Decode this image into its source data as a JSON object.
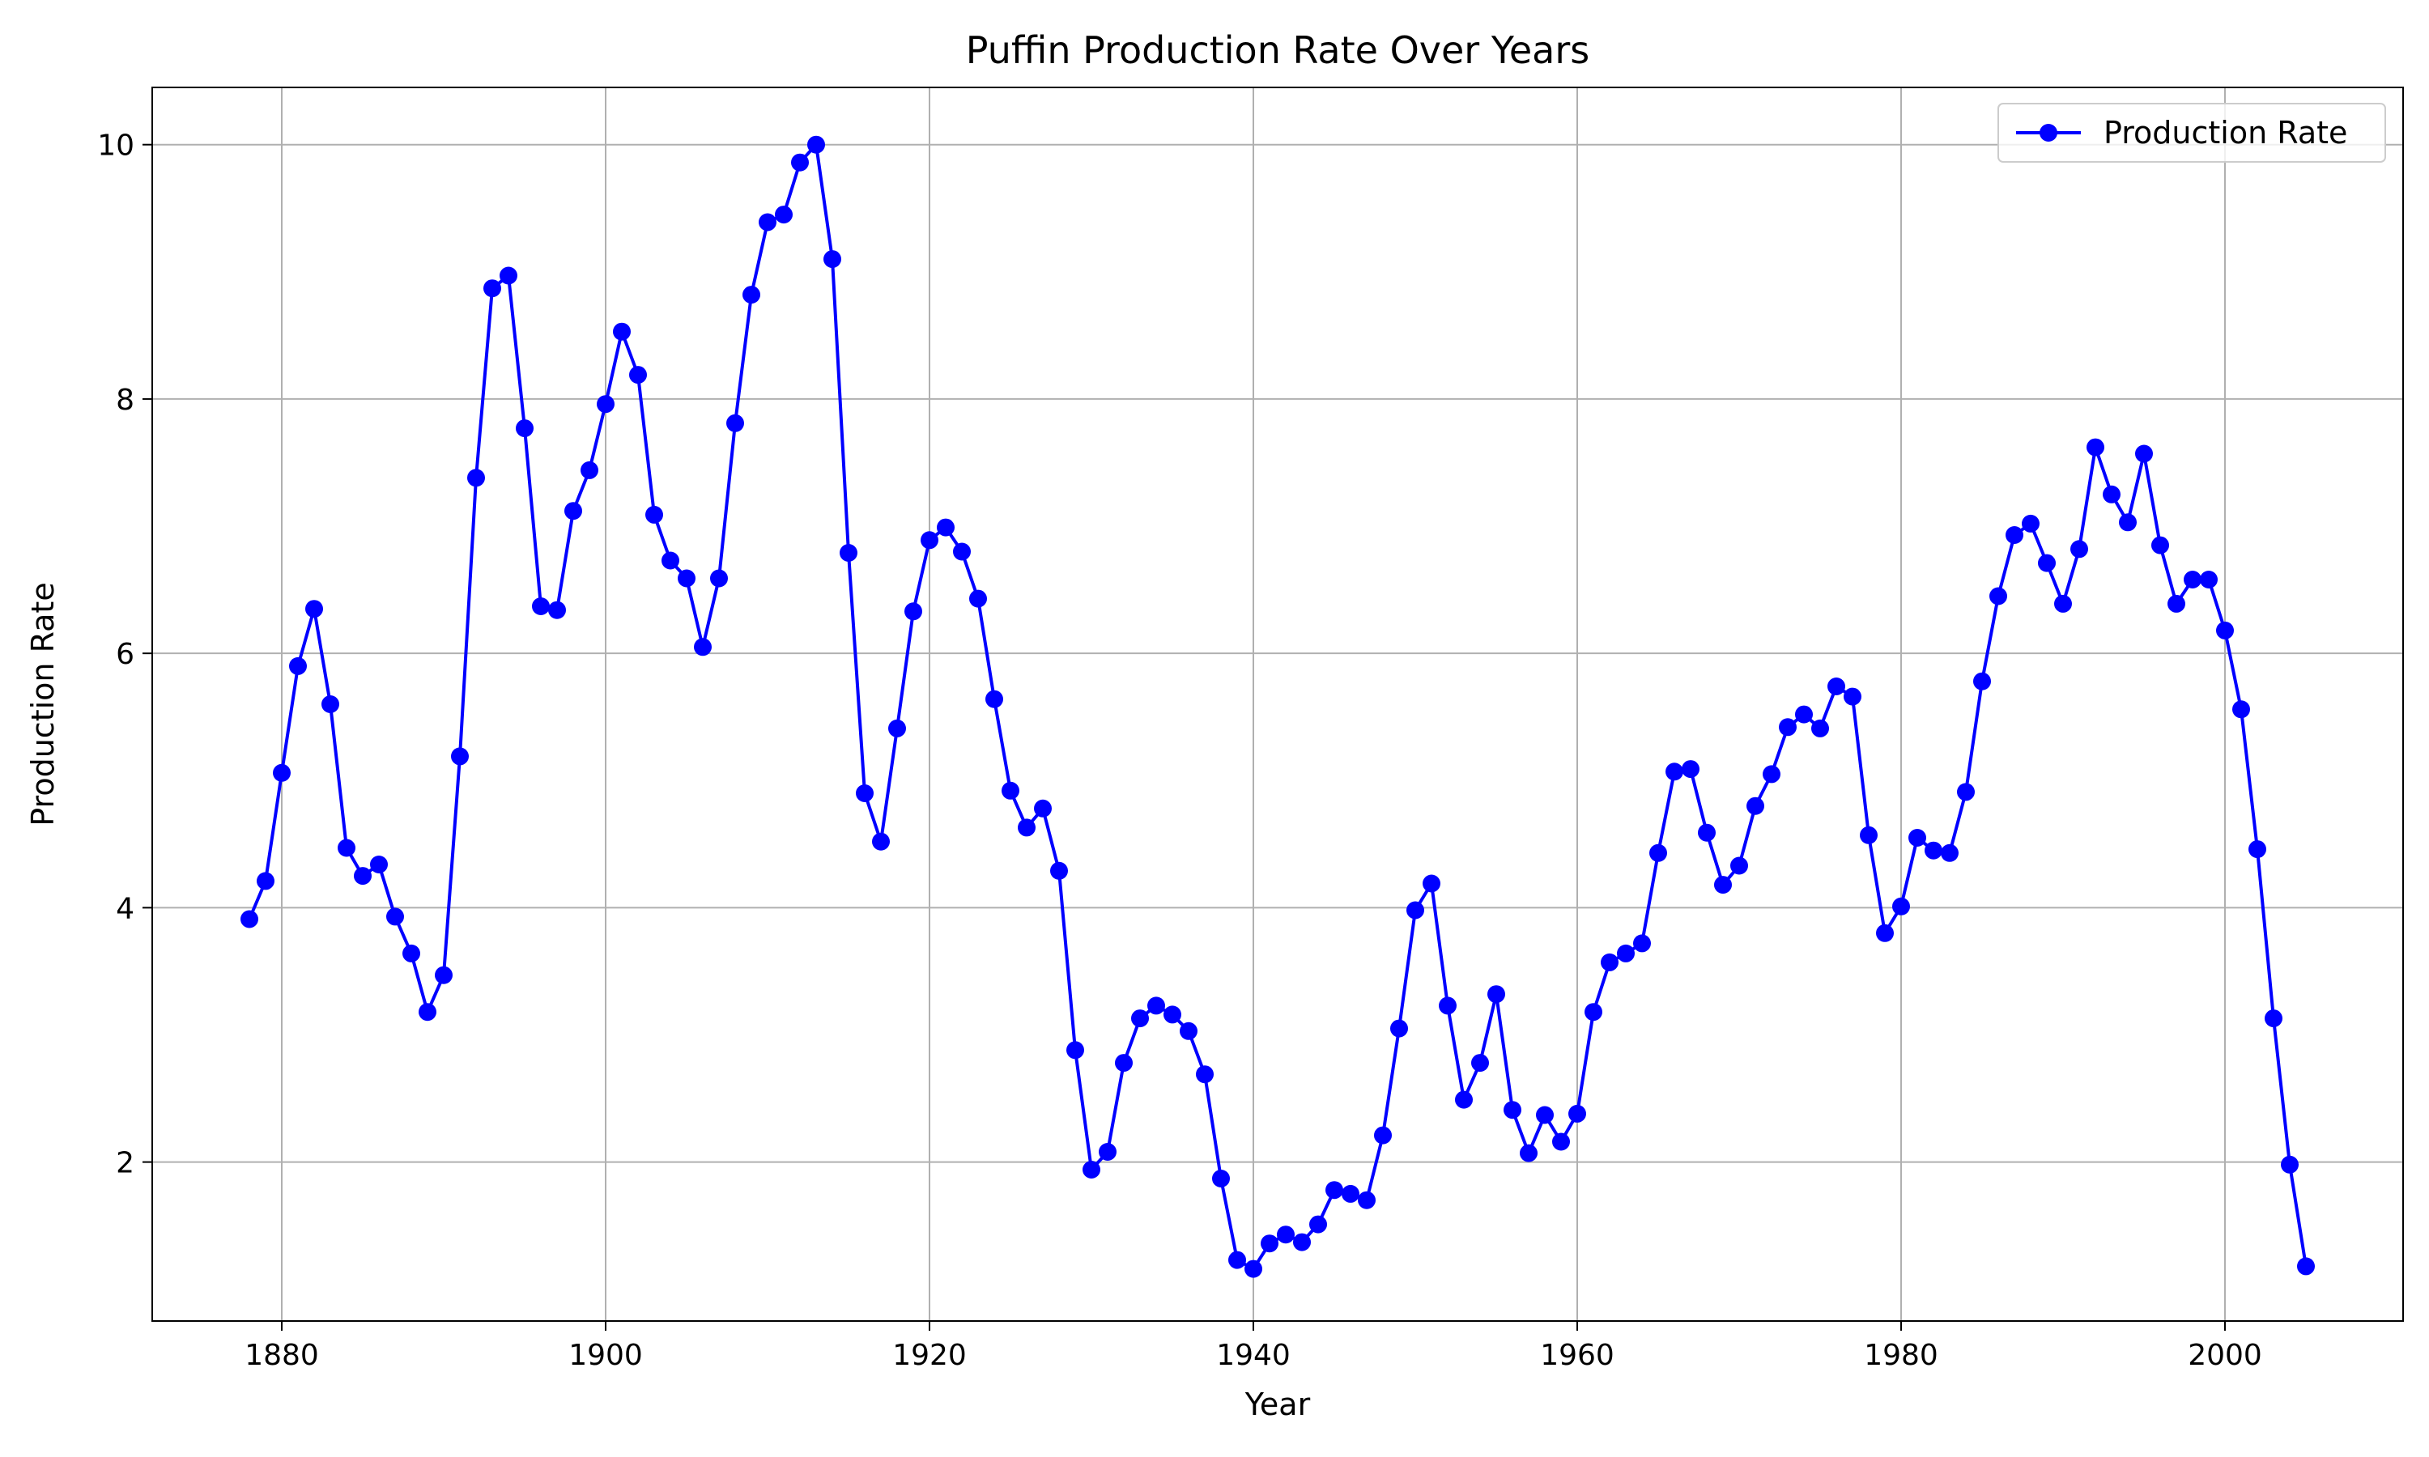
{
  "chart_data": {
    "type": "line",
    "title": "Puffin Production Rate Over Years",
    "xlabel": "Year",
    "ylabel": "Production Rate",
    "xlim": [
      1872,
      2011
    ],
    "ylim": [
      0.75,
      10.45
    ],
    "xticks": [
      1880,
      1900,
      1920,
      1940,
      1960,
      1980,
      2000
    ],
    "yticks": [
      2,
      4,
      6,
      8,
      10
    ],
    "grid": true,
    "legend": {
      "position": "top-right"
    },
    "colors": {
      "series": "#0000ff",
      "grid": "#b0b0b0"
    },
    "x": [
      1878,
      1879,
      1880,
      1881,
      1882,
      1883,
      1884,
      1885,
      1886,
      1887,
      1888,
      1889,
      1890,
      1891,
      1892,
      1893,
      1894,
      1895,
      1896,
      1897,
      1898,
      1899,
      1900,
      1901,
      1902,
      1903,
      1904,
      1905,
      1906,
      1907,
      1908,
      1909,
      1910,
      1911,
      1912,
      1913,
      1914,
      1915,
      1916,
      1917,
      1918,
      1919,
      1920,
      1921,
      1922,
      1923,
      1924,
      1925,
      1926,
      1927,
      1928,
      1929,
      1930,
      1931,
      1932,
      1933,
      1934,
      1935,
      1936,
      1937,
      1938,
      1939,
      1940,
      1941,
      1942,
      1943,
      1944,
      1945,
      1946,
      1947,
      1948,
      1949,
      1950,
      1951,
      1952,
      1953,
      1954,
      1955,
      1956,
      1957,
      1958,
      1959,
      1960,
      1961,
      1962,
      1963,
      1964,
      1965,
      1966,
      1967,
      1968,
      1969,
      1970,
      1971,
      1972,
      1973,
      1974,
      1975,
      1976,
      1977,
      1978,
      1979,
      1980,
      1981,
      1982,
      1983,
      1984,
      1985,
      1986,
      1987,
      1988,
      1989,
      1990,
      1991,
      1992,
      1993,
      1994,
      1995,
      1996,
      1997,
      1998,
      1999,
      2000,
      2001,
      2002,
      2003,
      2004,
      2005
    ],
    "series": [
      {
        "name": "Production Rate",
        "values": [
          3.91,
          4.21,
          5.06,
          5.9,
          6.35,
          5.6,
          4.47,
          4.25,
          4.34,
          3.93,
          3.64,
          3.18,
          3.47,
          5.19,
          7.38,
          8.87,
          8.97,
          7.77,
          6.37,
          6.34,
          7.12,
          7.44,
          7.96,
          8.53,
          8.19,
          7.09,
          6.73,
          6.59,
          6.05,
          6.59,
          7.81,
          8.82,
          9.39,
          9.45,
          9.86,
          10.0,
          9.1,
          6.79,
          4.9,
          4.52,
          5.41,
          6.33,
          6.89,
          6.99,
          6.8,
          6.43,
          5.64,
          4.92,
          4.63,
          4.78,
          4.29,
          2.88,
          1.94,
          2.08,
          2.78,
          3.13,
          3.23,
          3.16,
          3.03,
          2.69,
          1.87,
          1.23,
          1.16,
          1.36,
          1.43,
          1.37,
          1.51,
          1.78,
          1.75,
          1.7,
          2.21,
          3.05,
          3.98,
          4.19,
          3.23,
          2.49,
          2.78,
          3.32,
          2.41,
          2.07,
          2.37,
          2.16,
          2.38,
          3.18,
          3.57,
          3.64,
          3.72,
          4.43,
          5.07,
          5.09,
          4.59,
          4.18,
          4.33,
          4.8,
          5.05,
          5.42,
          5.52,
          5.41,
          5.74,
          5.66,
          4.57,
          3.8,
          4.01,
          4.55,
          4.45,
          4.43,
          4.91,
          5.78,
          6.45,
          6.93,
          7.02,
          6.71,
          6.39,
          6.82,
          7.62,
          7.25,
          7.03,
          7.57,
          6.85,
          6.39,
          6.58,
          6.58,
          6.18,
          5.56,
          4.46,
          3.13,
          1.98,
          1.18
        ]
      }
    ]
  }
}
